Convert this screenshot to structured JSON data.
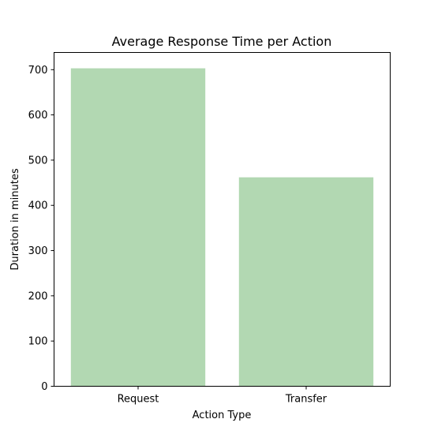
{
  "chart_data": {
    "type": "bar",
    "title": "Average Response Time per Action",
    "xlabel": "Action Type",
    "ylabel": "Duration in minutes",
    "categories": [
      "Request",
      "Transfer"
    ],
    "values": [
      703,
      462
    ],
    "ylim": [
      0,
      738
    ],
    "yticks": [
      0,
      100,
      200,
      300,
      400,
      500,
      600,
      700
    ],
    "grid": false,
    "legend": "none",
    "bar_color": "#b2d8b2",
    "axis_color": "#000000"
  }
}
